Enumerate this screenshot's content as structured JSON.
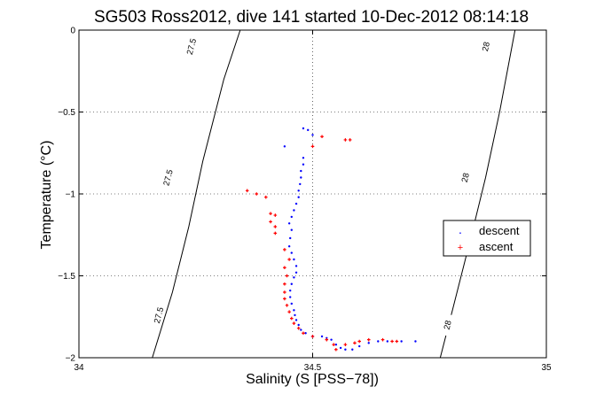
{
  "chart_data": {
    "type": "scatter",
    "title": "SG503 Ross2012, dive 141 started 10-Dec-2012 08:14:18",
    "xlabel": "Salinity (S [PSS−78])",
    "ylabel": "Temperature (°C)",
    "xlim": [
      34,
      35
    ],
    "ylim": [
      -2,
      0
    ],
    "x_ticks": [
      34,
      34.5,
      35
    ],
    "x_tick_labels": [
      "34",
      "34.5",
      "35"
    ],
    "y_ticks": [
      -2,
      -1.5,
      -1,
      -0.5,
      0
    ],
    "y_tick_labels": [
      "−2",
      "−1.5",
      "−1",
      "−0.5",
      "0"
    ],
    "grid": true,
    "legend_position": "right",
    "colors": {
      "descent": "#0000ff",
      "ascent": "#ff0000",
      "contour": "#000000"
    },
    "density_contours": [
      {
        "label": "27.5",
        "points": [
          [
            34.157,
            -2.0
          ],
          [
            34.2,
            -1.6
          ],
          [
            34.235,
            -1.2
          ],
          [
            34.265,
            -0.8
          ],
          [
            34.31,
            -0.3
          ],
          [
            34.345,
            0.0
          ]
        ],
        "label_positions": [
          [
            34.17,
            -1.74
          ],
          [
            34.19,
            -0.9
          ],
          [
            34.24,
            -0.1
          ]
        ]
      },
      {
        "label": "28",
        "points": [
          [
            34.773,
            -2.0
          ],
          [
            34.8,
            -1.7
          ],
          [
            34.84,
            -1.25
          ],
          [
            34.87,
            -0.9
          ],
          [
            34.9,
            -0.5
          ],
          [
            34.933,
            0.0
          ]
        ],
        "label_positions": [
          [
            34.788,
            -1.8
          ],
          [
            34.826,
            -0.9
          ],
          [
            34.87,
            -0.1
          ]
        ]
      }
    ],
    "series": [
      {
        "name": "descent",
        "marker": ".",
        "color": "#0000ff",
        "points": [
          [
            34.48,
            -0.6
          ],
          [
            34.49,
            -0.61
          ],
          [
            34.5,
            -0.64
          ],
          [
            34.44,
            -0.71
          ],
          [
            34.48,
            -0.78
          ],
          [
            34.48,
            -0.82
          ],
          [
            34.475,
            -0.86
          ],
          [
            34.475,
            -0.9
          ],
          [
            34.473,
            -0.94
          ],
          [
            34.47,
            -0.98
          ],
          [
            34.47,
            -1.02
          ],
          [
            34.465,
            -1.06
          ],
          [
            34.46,
            -1.1
          ],
          [
            34.455,
            -1.14
          ],
          [
            34.45,
            -1.18
          ],
          [
            34.455,
            -1.22
          ],
          [
            34.452,
            -1.27
          ],
          [
            34.45,
            -1.32
          ],
          [
            34.455,
            -1.36
          ],
          [
            34.46,
            -1.4
          ],
          [
            34.465,
            -1.44
          ],
          [
            34.465,
            -1.48
          ],
          [
            34.46,
            -1.51
          ],
          [
            34.455,
            -1.55
          ],
          [
            34.452,
            -1.59
          ],
          [
            34.452,
            -1.63
          ],
          [
            34.455,
            -1.67
          ],
          [
            34.46,
            -1.71
          ],
          [
            34.462,
            -1.74
          ],
          [
            34.465,
            -1.77
          ],
          [
            34.47,
            -1.8
          ],
          [
            34.475,
            -1.83
          ],
          [
            34.485,
            -1.85
          ],
          [
            34.5,
            -1.87
          ],
          [
            34.52,
            -1.87
          ],
          [
            34.53,
            -1.88
          ],
          [
            34.54,
            -1.89
          ],
          [
            34.55,
            -1.92
          ],
          [
            34.56,
            -1.94
          ],
          [
            34.57,
            -1.95
          ],
          [
            34.585,
            -1.95
          ],
          [
            34.6,
            -1.93
          ],
          [
            34.62,
            -1.91
          ],
          [
            34.64,
            -1.9
          ],
          [
            34.66,
            -1.9
          ],
          [
            34.69,
            -1.9
          ],
          [
            34.72,
            -1.9
          ]
        ]
      },
      {
        "name": "ascent",
        "marker": "+",
        "color": "#ff0000",
        "points": [
          [
            34.52,
            -0.65
          ],
          [
            34.57,
            -0.67
          ],
          [
            34.58,
            -0.67
          ],
          [
            34.5,
            -0.71
          ],
          [
            34.36,
            -0.98
          ],
          [
            34.38,
            -1.0
          ],
          [
            34.4,
            -1.02
          ],
          [
            34.41,
            -1.12
          ],
          [
            34.42,
            -1.13
          ],
          [
            34.41,
            -1.17
          ],
          [
            34.42,
            -1.2
          ],
          [
            34.42,
            -1.24
          ],
          [
            34.44,
            -1.34
          ],
          [
            34.45,
            -1.4
          ],
          [
            34.44,
            -1.45
          ],
          [
            34.445,
            -1.5
          ],
          [
            34.44,
            -1.55
          ],
          [
            34.44,
            -1.6
          ],
          [
            34.44,
            -1.64
          ],
          [
            34.445,
            -1.68
          ],
          [
            34.45,
            -1.72
          ],
          [
            34.455,
            -1.76
          ],
          [
            34.46,
            -1.79
          ],
          [
            34.47,
            -1.82
          ],
          [
            34.48,
            -1.85
          ],
          [
            34.5,
            -1.87
          ],
          [
            34.53,
            -1.89
          ],
          [
            34.545,
            -1.92
          ],
          [
            34.55,
            -1.95
          ],
          [
            34.57,
            -1.92
          ],
          [
            34.59,
            -1.91
          ],
          [
            34.6,
            -1.9
          ],
          [
            34.62,
            -1.89
          ],
          [
            34.65,
            -1.89
          ],
          [
            34.67,
            -1.9
          ],
          [
            34.68,
            -1.9
          ]
        ]
      }
    ]
  }
}
